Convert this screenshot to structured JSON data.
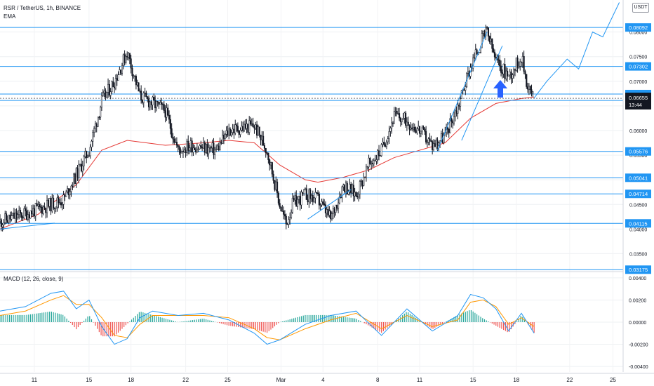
{
  "header": {
    "symbol": "RSR / TetherUS, 1h, BINANCE",
    "ema_label": "EMA",
    "currency": "USDT"
  },
  "macd_label": "MACD (12, 26, close, 9)",
  "colors": {
    "level_line": "#2196f3",
    "ema": "#e53935",
    "candle": "#131722",
    "macd_line": "#2196f3",
    "signal_line": "#ff9800",
    "hist_pos": "#26a69a",
    "hist_neg": "#ef5350",
    "arrow": "#2962ff"
  },
  "chart_data": [
    {
      "type": "candlestick",
      "title": "RSR / TetherUS, 1h, BINANCE",
      "overlay": "EMA",
      "x_ticks": [
        "11",
        "15",
        "18",
        "22",
        "25",
        "Mar",
        "4",
        "8",
        "11",
        "15",
        "18",
        "22",
        "25"
      ],
      "y_ticks": [
        "0.08000",
        "0.07500",
        "0.07000",
        "0.06500",
        "0.06000",
        "0.05500",
        "0.05000",
        "0.04500",
        "0.04000",
        "0.03500"
      ],
      "ylim": [
        0.0315,
        0.0865
      ],
      "grid": true,
      "horizontal_levels": [
        "0.08092",
        "0.07302",
        "0.06741",
        "0.06611",
        "0.05576",
        "0.05041",
        "0.04714",
        "0.04115",
        "0.03175"
      ],
      "last_price": {
        "value": "0.06655",
        "countdown": "13:44"
      },
      "price_path": [
        {
          "x": 0,
          "y": 0.0415
        },
        {
          "x": 3,
          "y": 0.044
        },
        {
          "x": 5,
          "y": 0.046
        },
        {
          "x": 7,
          "y": 0.056
        },
        {
          "x": 8,
          "y": 0.066
        },
        {
          "x": 9,
          "y": 0.07
        },
        {
          "x": 10,
          "y": 0.076
        },
        {
          "x": 11,
          "y": 0.067
        },
        {
          "x": 13,
          "y": 0.064
        },
        {
          "x": 14,
          "y": 0.056
        },
        {
          "x": 15,
          "y": 0.057
        },
        {
          "x": 17,
          "y": 0.056
        },
        {
          "x": 18,
          "y": 0.06
        },
        {
          "x": 20,
          "y": 0.061
        },
        {
          "x": 21,
          "y": 0.056
        },
        {
          "x": 22,
          "y": 0.045
        },
        {
          "x": 22.5,
          "y": 0.041
        },
        {
          "x": 23,
          "y": 0.045
        },
        {
          "x": 24,
          "y": 0.047
        },
        {
          "x": 25,
          "y": 0.046
        },
        {
          "x": 26,
          "y": 0.042
        },
        {
          "x": 27,
          "y": 0.049
        },
        {
          "x": 28,
          "y": 0.047
        },
        {
          "x": 29,
          "y": 0.053
        },
        {
          "x": 30,
          "y": 0.056
        },
        {
          "x": 31,
          "y": 0.063
        },
        {
          "x": 32,
          "y": 0.062
        },
        {
          "x": 33,
          "y": 0.06
        },
        {
          "x": 34,
          "y": 0.057
        },
        {
          "x": 35,
          "y": 0.059
        },
        {
          "x": 36,
          "y": 0.065
        },
        {
          "x": 37,
          "y": 0.073
        },
        {
          "x": 38,
          "y": 0.079
        },
        {
          "x": 38.3,
          "y": 0.08
        },
        {
          "x": 39,
          "y": 0.074
        },
        {
          "x": 40,
          "y": 0.071
        },
        {
          "x": 41,
          "y": 0.075
        },
        {
          "x": 41.5,
          "y": 0.069
        },
        {
          "x": 42,
          "y": 0.0666
        }
      ],
      "ema": [
        {
          "x": 0,
          "y": 0.04
        },
        {
          "x": 3,
          "y": 0.043
        },
        {
          "x": 6,
          "y": 0.049
        },
        {
          "x": 8,
          "y": 0.056
        },
        {
          "x": 10,
          "y": 0.058
        },
        {
          "x": 13,
          "y": 0.057
        },
        {
          "x": 16,
          "y": 0.0575
        },
        {
          "x": 18,
          "y": 0.058
        },
        {
          "x": 20,
          "y": 0.0575
        },
        {
          "x": 22,
          "y": 0.053
        },
        {
          "x": 24,
          "y": 0.05
        },
        {
          "x": 25,
          "y": 0.0495
        },
        {
          "x": 27,
          "y": 0.0505
        },
        {
          "x": 29,
          "y": 0.052
        },
        {
          "x": 31,
          "y": 0.0545
        },
        {
          "x": 33,
          "y": 0.056
        },
        {
          "x": 35,
          "y": 0.0575
        },
        {
          "x": 37,
          "y": 0.0625
        },
        {
          "x": 39,
          "y": 0.0655
        },
        {
          "x": 41,
          "y": 0.0665
        },
        {
          "x": 42,
          "y": 0.0668
        }
      ],
      "trendlines": [
        {
          "from": {
            "x": 0,
            "y": 0.04
          },
          "to": {
            "x": 4.3,
            "y": 0.0412
          }
        },
        {
          "from": {
            "x": 24.2,
            "y": 0.042
          },
          "to": {
            "x": 27.6,
            "y": 0.048
          }
        },
        {
          "from": {
            "x": 34.4,
            "y": 0.056
          },
          "to": {
            "x": 38.3,
            "y": 0.08
          }
        },
        {
          "from": {
            "x": 36.3,
            "y": 0.058
          },
          "to": {
            "x": 39.5,
            "y": 0.0772
          }
        }
      ],
      "projection": [
        {
          "x": 42,
          "y": 0.0666
        },
        {
          "x": 43,
          "y": 0.07
        },
        {
          "x": 44.6,
          "y": 0.0745
        },
        {
          "x": 45.5,
          "y": 0.0725
        },
        {
          "x": 46.6,
          "y": 0.08
        },
        {
          "x": 47.4,
          "y": 0.079
        },
        {
          "x": 48.7,
          "y": 0.086
        }
      ],
      "annotation": "up-arrow"
    },
    {
      "type": "line",
      "title": "MACD (12, 26, close, 9)",
      "y_ticks": [
        "0.00400",
        "0.00200",
        "0.00000",
        "-0.00200",
        "-0.00400"
      ],
      "ylim": [
        -0.0045,
        0.0045
      ],
      "macd": [
        {
          "x": 0,
          "y": 0.001
        },
        {
          "x": 2,
          "y": 0.0014
        },
        {
          "x": 4,
          "y": 0.0026
        },
        {
          "x": 5,
          "y": 0.0028
        },
        {
          "x": 6,
          "y": 0.0012
        },
        {
          "x": 7,
          "y": 0.002
        },
        {
          "x": 8,
          "y": -0.0004
        },
        {
          "x": 9,
          "y": -0.002
        },
        {
          "x": 10,
          "y": -0.0015
        },
        {
          "x": 11,
          "y": 0.0004
        },
        {
          "x": 12,
          "y": 0.001
        },
        {
          "x": 14,
          "y": 0.0006
        },
        {
          "x": 16,
          "y": 0.0008
        },
        {
          "x": 18,
          "y": 0.0002
        },
        {
          "x": 20,
          "y": -0.001
        },
        {
          "x": 21,
          "y": -0.002
        },
        {
          "x": 22,
          "y": -0.0016
        },
        {
          "x": 24,
          "y": -0.0002
        },
        {
          "x": 26,
          "y": 0.0006
        },
        {
          "x": 28,
          "y": 0.001
        },
        {
          "x": 30,
          "y": -0.0012
        },
        {
          "x": 32,
          "y": 0.0012
        },
        {
          "x": 34,
          "y": -0.0008
        },
        {
          "x": 36,
          "y": 0.0006
        },
        {
          "x": 37,
          "y": 0.0025
        },
        {
          "x": 38,
          "y": 0.0022
        },
        {
          "x": 39,
          "y": 0.0012
        },
        {
          "x": 40,
          "y": -0.0008
        },
        {
          "x": 41,
          "y": 0.0008
        },
        {
          "x": 42,
          "y": -0.001
        }
      ],
      "signal": [
        {
          "x": 0,
          "y": 0.0006
        },
        {
          "x": 2,
          "y": 0.001
        },
        {
          "x": 4,
          "y": 0.002
        },
        {
          "x": 5,
          "y": 0.0024
        },
        {
          "x": 6,
          "y": 0.0016
        },
        {
          "x": 7,
          "y": 0.0016
        },
        {
          "x": 8,
          "y": 0.0004
        },
        {
          "x": 9,
          "y": -0.0012
        },
        {
          "x": 10,
          "y": -0.0014
        },
        {
          "x": 11,
          "y": -0.0002
        },
        {
          "x": 12,
          "y": 0.0006
        },
        {
          "x": 14,
          "y": 0.0006
        },
        {
          "x": 16,
          "y": 0.0006
        },
        {
          "x": 18,
          "y": 0.0004
        },
        {
          "x": 20,
          "y": -0.0006
        },
        {
          "x": 21,
          "y": -0.0014
        },
        {
          "x": 22,
          "y": -0.0016
        },
        {
          "x": 24,
          "y": -0.0006
        },
        {
          "x": 26,
          "y": 0.0002
        },
        {
          "x": 28,
          "y": 0.0008
        },
        {
          "x": 30,
          "y": -0.0006
        },
        {
          "x": 32,
          "y": 0.0006
        },
        {
          "x": 34,
          "y": -0.0004
        },
        {
          "x": 36,
          "y": 0.0002
        },
        {
          "x": 37,
          "y": 0.0018
        },
        {
          "x": 38,
          "y": 0.002
        },
        {
          "x": 39,
          "y": 0.0014
        },
        {
          "x": 40,
          "y": -0.0002
        },
        {
          "x": 41,
          "y": 0.0004
        },
        {
          "x": 42,
          "y": -0.0004
        }
      ]
    }
  ]
}
